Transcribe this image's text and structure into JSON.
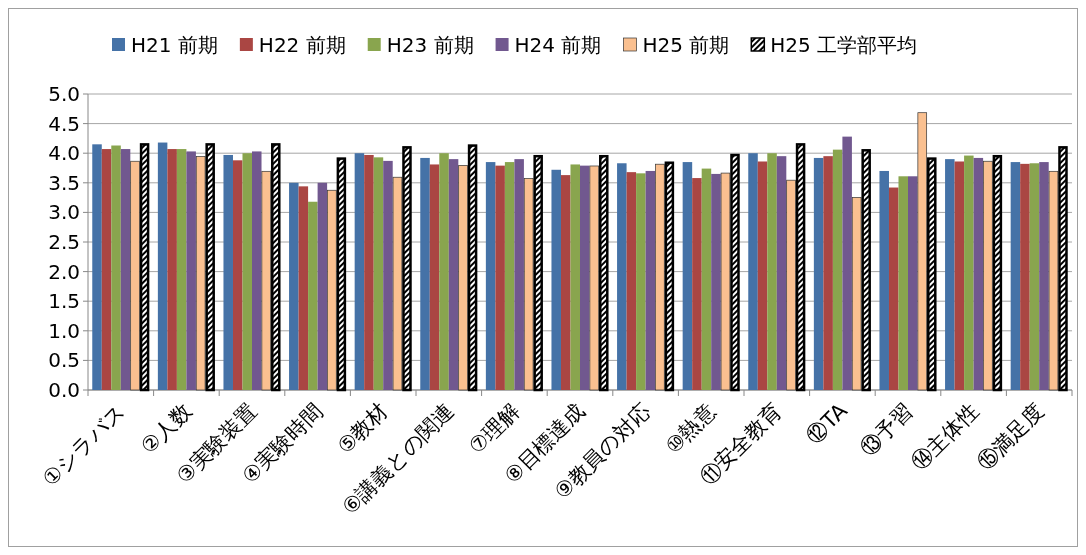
{
  "chart_data": {
    "type": "bar",
    "categories": [
      "①シラバス",
      "②人数",
      "③実験装置",
      "④実験時間",
      "⑤教材",
      "⑥講義との関連",
      "⑦理解",
      "⑧目標達成",
      "⑨教員の対応",
      "⑩熱意",
      "⑪安全教育",
      "⑫TA",
      "⑬予習",
      "⑭主体性",
      "⑮満足度"
    ],
    "series": [
      {
        "name": "H21 前期",
        "color": "#4572a7",
        "values": [
          4.15,
          4.18,
          3.97,
          3.5,
          4.0,
          3.92,
          3.85,
          3.72,
          3.83,
          3.85,
          4.0,
          3.92,
          3.7,
          3.9,
          3.85
        ]
      },
      {
        "name": "H22 前期",
        "color": "#aa4643",
        "values": [
          4.07,
          4.07,
          3.88,
          3.44,
          3.97,
          3.81,
          3.79,
          3.63,
          3.68,
          3.58,
          3.86,
          3.95,
          3.42,
          3.86,
          3.82
        ]
      },
      {
        "name": "H23 前期",
        "color": "#89a54e",
        "values": [
          4.13,
          4.07,
          4.0,
          3.18,
          3.93,
          4.0,
          3.85,
          3.81,
          3.66,
          3.74,
          4.0,
          4.06,
          3.61,
          3.96,
          3.83
        ]
      },
      {
        "name": "H24 前期",
        "color": "#71588f",
        "values": [
          4.07,
          4.03,
          4.03,
          3.5,
          3.87,
          3.9,
          3.9,
          3.79,
          3.7,
          3.65,
          3.95,
          4.28,
          3.61,
          3.92,
          3.85
        ]
      },
      {
        "name": "H25 前期",
        "color": "#fac090",
        "values": [
          3.87,
          3.95,
          3.7,
          3.38,
          3.6,
          3.8,
          3.58,
          3.79,
          3.82,
          3.67,
          3.55,
          3.26,
          4.69,
          3.87,
          3.7
        ]
      },
      {
        "name": "H25 工学部平均",
        "color": "#000000",
        "values": [
          4.17,
          4.17,
          4.17,
          3.93,
          4.12,
          4.15,
          3.97,
          3.97,
          3.86,
          3.99,
          4.17,
          4.07,
          3.93,
          3.97,
          4.12
        ]
      }
    ],
    "ylim": [
      0,
      5
    ],
    "yticks": [
      {
        "value": 0,
        "label": "0.0"
      },
      {
        "value": 0.5,
        "label": "0.5"
      },
      {
        "value": 1,
        "label": "1.0"
      },
      {
        "value": 1.5,
        "label": "1.5"
      },
      {
        "value": 2,
        "label": "2.0"
      },
      {
        "value": 2.5,
        "label": "2.5"
      },
      {
        "value": 3,
        "label": "3.0"
      },
      {
        "value": 3.5,
        "label": "3.5"
      },
      {
        "value": 4,
        "label": "4.0"
      },
      {
        "value": 4.5,
        "label": "4.5"
      },
      {
        "value": 5,
        "label": "5.0"
      }
    ],
    "grid": "y",
    "legend": "top"
  }
}
